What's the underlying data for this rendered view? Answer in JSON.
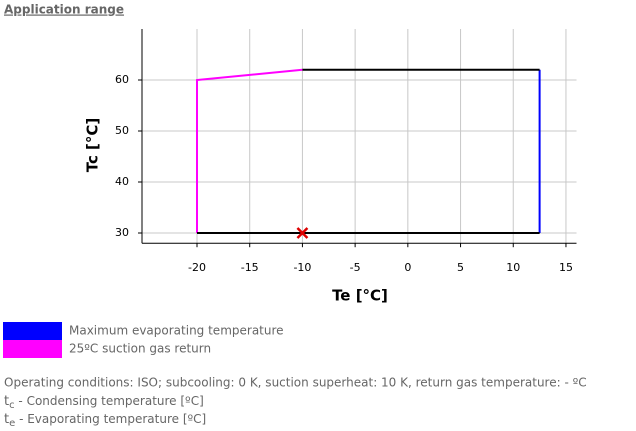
{
  "header": {
    "title": "Application range"
  },
  "chart_data": {
    "type": "line",
    "x_label": "Te [°C]",
    "y_label": "Tc [°C]",
    "xlim": [
      -25,
      16
    ],
    "ylim": [
      28,
      70
    ],
    "xticks": [
      -20,
      -15,
      -10,
      -5,
      0,
      5,
      10,
      15
    ],
    "yticks": [
      30,
      40,
      50,
      60
    ],
    "grid": true,
    "series": [
      {
        "name": "Maximum evaporating temperature",
        "color": "#0000ff",
        "x": [
          12.5,
          12.5
        ],
        "values": [
          62,
          30
        ]
      },
      {
        "name": "25ºC suction gas return",
        "color": "#ff00ff",
        "x": [
          -20,
          -20,
          -10
        ],
        "values": [
          30,
          60,
          62
        ]
      },
      {
        "color": "#000000",
        "x": [
          -10,
          12.5,
          null,
          12.5,
          -20
        ],
        "values": [
          62,
          62,
          null,
          30,
          30
        ]
      }
    ],
    "points": [
      {
        "x": -10,
        "y": 30,
        "color": "#dd0000"
      }
    ]
  },
  "notes": {
    "conditions": "Operating conditions: ISO; subcooling: 0 K, suction superheat: 10 K, return gas temperature: - ºC",
    "symbols": [
      {
        "symbol": "t",
        "sub": "c",
        "text": " - Condensing temperature [ºC]"
      },
      {
        "symbol": "t",
        "sub": "e",
        "text": " - Evaporating temperature [ºC]"
      }
    ]
  }
}
